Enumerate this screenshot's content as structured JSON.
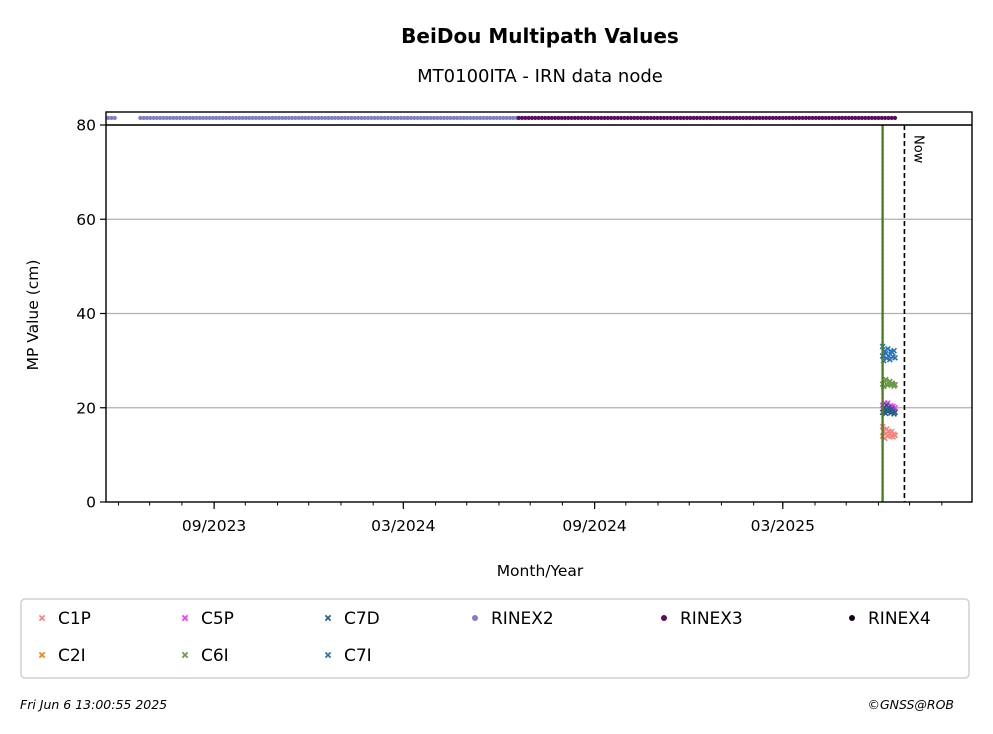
{
  "chart_data": {
    "type": "scatter",
    "title": "BeiDou Multipath Values",
    "subtitle": "MT0100ITA - IRN data node",
    "xlabel": "Month/Year",
    "ylabel": "MP Value (cm)",
    "x_range": [
      "2023-05-20",
      "2025-08-30"
    ],
    "ylim": [
      0,
      80
    ],
    "y_ticks": [
      0,
      20,
      40,
      60,
      80
    ],
    "x_tick_labels": [
      {
        "date": "2023-09-01",
        "label": "09/2023"
      },
      {
        "date": "2024-03-01",
        "label": "03/2024"
      },
      {
        "date": "2024-09-01",
        "label": "09/2024"
      },
      {
        "date": "2025-03-01",
        "label": "03/2025"
      }
    ],
    "grid": "y",
    "legend_position": "below",
    "series": [
      {
        "name": "C1P",
        "marker": "x",
        "color": "#f4837d",
        "points": [
          [
            "2025-06-05",
            16
          ],
          [
            "2025-06-05",
            14
          ],
          [
            "2025-06-06",
            15
          ],
          [
            "2025-06-07",
            13.5
          ],
          [
            "2025-06-08",
            14.5
          ],
          [
            "2025-06-09",
            15.5
          ],
          [
            "2025-06-10",
            14
          ],
          [
            "2025-06-11",
            15
          ],
          [
            "2025-06-12",
            14.5
          ],
          [
            "2025-06-13",
            14
          ],
          [
            "2025-06-14",
            15
          ],
          [
            "2025-06-15",
            13.8
          ],
          [
            "2025-06-16",
            14.4
          ],
          [
            "2025-06-17",
            14.1
          ]
        ]
      },
      {
        "name": "C2I",
        "marker": "x",
        "color": "#ff7f0e",
        "points": []
      },
      {
        "name": "C5P",
        "marker": "x",
        "color": "#ff33ff",
        "points": [
          [
            "2025-06-05",
            20.5
          ],
          [
            "2025-06-06",
            19.5
          ],
          [
            "2025-06-07",
            21
          ],
          [
            "2025-06-08",
            20
          ],
          [
            "2025-06-09",
            19.8
          ],
          [
            "2025-06-10",
            21
          ],
          [
            "2025-06-11",
            20.2
          ],
          [
            "2025-06-12",
            19.6
          ],
          [
            "2025-06-13",
            20.4
          ],
          [
            "2025-06-14",
            19.9
          ],
          [
            "2025-06-15",
            20.3
          ],
          [
            "2025-06-16",
            19.7
          ],
          [
            "2025-06-17",
            20
          ]
        ]
      },
      {
        "name": "C6I",
        "marker": "x",
        "color": "#6a9a48",
        "points": [
          [
            "2025-06-05",
            25
          ],
          [
            "2025-06-06",
            24.5
          ],
          [
            "2025-06-07",
            25.5
          ],
          [
            "2025-06-08",
            26
          ],
          [
            "2025-06-09",
            25
          ],
          [
            "2025-06-10",
            24.8
          ],
          [
            "2025-06-11",
            25.3
          ],
          [
            "2025-06-12",
            25.6
          ],
          [
            "2025-06-13",
            24.9
          ],
          [
            "2025-06-14",
            25.2
          ],
          [
            "2025-06-15",
            25
          ],
          [
            "2025-06-16",
            24.6
          ],
          [
            "2025-06-17",
            24.9
          ]
        ]
      },
      {
        "name": "C7D",
        "marker": "x",
        "color": "#2b5c8a",
        "points": [
          [
            "2025-06-05",
            19
          ],
          [
            "2025-06-06",
            20
          ],
          [
            "2025-06-07",
            19.5
          ],
          [
            "2025-06-08",
            18.8
          ],
          [
            "2025-06-09",
            20.5
          ],
          [
            "2025-06-10",
            19.2
          ],
          [
            "2025-06-11",
            20.1
          ],
          [
            "2025-06-12",
            19.4
          ],
          [
            "2025-06-13",
            18.9
          ],
          [
            "2025-06-14",
            19.8
          ],
          [
            "2025-06-15",
            19.3
          ],
          [
            "2025-06-16",
            18.7
          ],
          [
            "2025-06-17",
            19
          ]
        ]
      },
      {
        "name": "C7I",
        "marker": "x",
        "color": "#2a74b8",
        "points": [
          [
            "2025-06-05",
            33
          ],
          [
            "2025-06-05",
            31
          ],
          [
            "2025-06-06",
            30
          ],
          [
            "2025-06-07",
            32
          ],
          [
            "2025-06-08",
            31.5
          ],
          [
            "2025-06-09",
            30.5
          ],
          [
            "2025-06-10",
            32.5
          ],
          [
            "2025-06-11",
            31
          ],
          [
            "2025-06-12",
            30.2
          ],
          [
            "2025-06-13",
            32
          ],
          [
            "2025-06-14",
            31.8
          ],
          [
            "2025-06-15",
            30.8
          ],
          [
            "2025-06-16",
            32.1
          ],
          [
            "2025-06-17",
            30.6
          ]
        ]
      },
      {
        "name": "RINEX2",
        "marker": "dot",
        "color": "#7f7fc7",
        "y": 81.5,
        "ranges": [
          [
            "2023-05-22",
            "2023-05-30"
          ],
          [
            "2023-06-22",
            "2024-06-20"
          ]
        ]
      },
      {
        "name": "RINEX3",
        "marker": "dot",
        "color": "#5e0a5e",
        "y": 81.5,
        "ranges": [
          [
            "2024-06-20",
            "2025-06-18"
          ]
        ]
      },
      {
        "name": "RINEX4",
        "marker": "dot",
        "color": "#1a0020",
        "points": []
      }
    ],
    "vlines": [
      {
        "date": "2025-06-05",
        "style": "green-red-dotted"
      },
      {
        "date": "2025-06-26",
        "style": "black-dashed",
        "label": "Now"
      }
    ]
  },
  "footer": {
    "timestamp": "Fri Jun  6 13:00:55 2025",
    "copyright": "©GNSS@ROB"
  }
}
